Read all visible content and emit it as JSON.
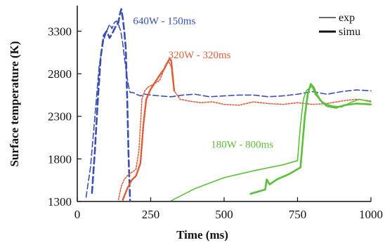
{
  "chart_data": {
    "type": "line",
    "xlabel": "Time (ms)",
    "ylabel": "Surface temperature (K)",
    "xlim": [
      0,
      1000
    ],
    "ylim": [
      1300,
      3600
    ],
    "xticks": [
      "0",
      "250",
      "500",
      "750",
      "1000"
    ],
    "yticks": [
      "1300",
      "1800",
      "2300",
      "2800",
      "3300"
    ],
    "grid": false,
    "legend": {
      "position": "top-right",
      "entries": [
        {
          "label": "exp",
          "style": "thin"
        },
        {
          "label": "simu",
          "style": "thick"
        }
      ]
    },
    "annotations": [
      {
        "text": "640W - 150ms",
        "color": "#3a4fb0",
        "x": 190,
        "y": 3380
      },
      {
        "text": "320W - 320ms",
        "color": "#d9603a",
        "x": 310,
        "y": 2980
      },
      {
        "text": "180W - 800ms",
        "color": "#5bbf3a",
        "x": 455,
        "y": 1930
      }
    ],
    "series": [
      {
        "group": "640W - 150ms",
        "kind": "exp",
        "color": "#3a4fb0",
        "x": [
          30,
          45,
          60,
          75,
          90,
          100,
          110,
          118,
          126,
          134,
          140,
          148,
          155,
          162,
          170,
          175,
          180,
          190,
          200,
          215,
          230,
          250,
          280,
          320,
          360,
          400,
          450,
          500,
          550,
          600,
          650,
          700,
          750,
          800,
          850,
          900,
          950,
          1000
        ],
        "y": [
          1350,
          1700,
          2300,
          2900,
          3200,
          3300,
          3380,
          3330,
          3400,
          3420,
          3380,
          3300,
          3150,
          2950,
          2750,
          2650,
          2580,
          2580,
          2560,
          2540,
          2560,
          2550,
          2540,
          2530,
          2550,
          2560,
          2530,
          2540,
          2550,
          2550,
          2530,
          2540,
          2560,
          2590,
          2560,
          2590,
          2610,
          2600
        ]
      },
      {
        "group": "640W - 150ms",
        "kind": "simu",
        "color": "#3a4fb0",
        "x": [
          50,
          60,
          70,
          80,
          90,
          100,
          110,
          120,
          130,
          140,
          145,
          150,
          155,
          160,
          165,
          170,
          175,
          180
        ],
        "y": [
          1400,
          1900,
          2500,
          3000,
          3250,
          3300,
          3220,
          3280,
          3350,
          3400,
          3500,
          3560,
          3450,
          3300,
          3100,
          2500,
          1800,
          1300
        ]
      },
      {
        "group": "320W - 320ms",
        "kind": "exp",
        "color": "#d9603a",
        "x": [
          140,
          150,
          160,
          170,
          180,
          190,
          200,
          210,
          220,
          230,
          240,
          250,
          260,
          270,
          280,
          290,
          300,
          310,
          320,
          330,
          350,
          380,
          420,
          460,
          500,
          550,
          600,
          650,
          700,
          750,
          800,
          850,
          900,
          950,
          1000
        ],
        "y": [
          1320,
          1480,
          1560,
          1600,
          1630,
          1650,
          1680,
          1900,
          2500,
          2600,
          2640,
          2660,
          2680,
          2700,
          2720,
          2800,
          2900,
          2950,
          2880,
          2600,
          2500,
          2480,
          2460,
          2470,
          2440,
          2430,
          2470,
          2450,
          2440,
          2460,
          2440,
          2450,
          2480,
          2500,
          2480
        ]
      },
      {
        "group": "320W - 320ms",
        "kind": "simu",
        "color": "#d9603a",
        "x": [
          155,
          170,
          185,
          200,
          215,
          225,
          235,
          250,
          265,
          280,
          295,
          305,
          315,
          320,
          330
        ],
        "y": [
          1320,
          1450,
          1550,
          1600,
          1750,
          2200,
          2500,
          2620,
          2700,
          2780,
          2850,
          2920,
          2980,
          2950,
          2600
        ]
      },
      {
        "group": "180W - 800ms",
        "kind": "exp",
        "color": "#5bbf3a",
        "x": [
          320,
          400,
          500,
          600,
          700,
          750,
          760,
          770,
          780,
          790,
          800,
          810,
          830,
          850,
          870,
          900,
          930,
          960,
          1000
        ],
        "y": [
          1310,
          1450,
          1580,
          1660,
          1730,
          1780,
          2200,
          2500,
          2600,
          2630,
          2650,
          2560,
          2480,
          2440,
          2420,
          2410,
          2460,
          2500,
          2470
        ]
      },
      {
        "group": "180W - 800ms",
        "kind": "simu",
        "color": "#5bbf3a",
        "x": [
          590,
          620,
          640,
          645,
          655,
          680,
          720,
          760,
          775,
          785,
          795,
          805,
          815,
          830,
          850,
          880,
          910,
          950,
          1000
        ],
        "y": [
          1390,
          1420,
          1440,
          1560,
          1500,
          1560,
          1620,
          1700,
          2300,
          2560,
          2680,
          2640,
          2560,
          2480,
          2420,
          2400,
          2430,
          2450,
          2440
        ]
      }
    ]
  }
}
